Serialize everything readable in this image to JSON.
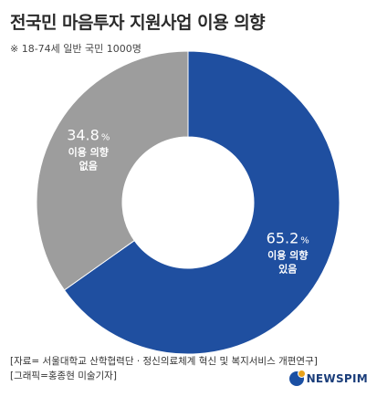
{
  "header": {
    "title": "전국민 마음투자 지원사업 이용 의향",
    "subtitle": "※ 18-74세 일반 국민 1000명"
  },
  "chart_data": {
    "type": "pie",
    "title": "전국민 마음투자 지원사업 이용 의향",
    "subtitle": "※ 18-74세 일반 국민 1000명",
    "donut": true,
    "slices": [
      {
        "value": 65.2,
        "value_label": "65.2",
        "unit": "%",
        "line1": "이용 의향",
        "line2": "있음",
        "color": "#1f4fa0"
      },
      {
        "value": 34.8,
        "value_label": "34.8",
        "unit": "%",
        "line1": "이용 의향",
        "line2": "없음",
        "color": "#9d9d9d"
      }
    ]
  },
  "footer": {
    "source": "[자료= 서울대학교 산학협력단 · 정신의료체계 혁신 및 복지서비스 개편연구]",
    "credit": "[그래픽=홍종현 미술기자]"
  },
  "brand": {
    "name": "NEWSPIM",
    "mark": "newspim-logo-icon"
  }
}
